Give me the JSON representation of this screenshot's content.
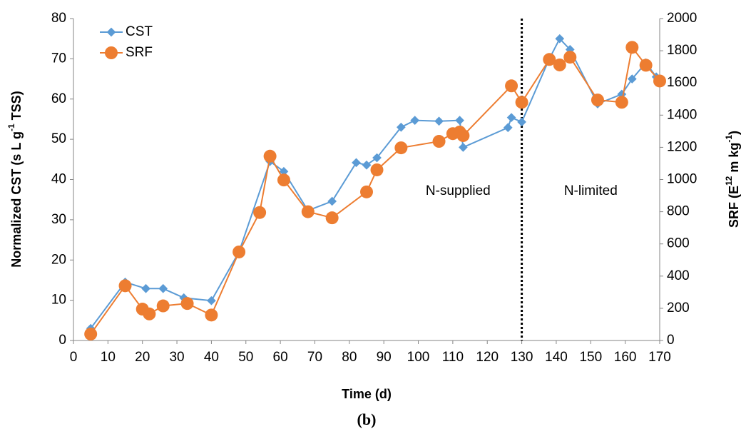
{
  "chart_data": {
    "type": "line",
    "title": "(b)",
    "xlabel": "Time (d)",
    "ylabel": [
      "Normalized CST (s L g",
      "-1",
      " TSS)"
    ],
    "y2label": [
      "SRF (E",
      "12",
      " m kg",
      "-1",
      ")"
    ],
    "xlim": [
      0,
      170
    ],
    "xticks": [
      0,
      10,
      20,
      30,
      40,
      50,
      60,
      70,
      80,
      90,
      100,
      110,
      120,
      130,
      140,
      150,
      160,
      170
    ],
    "ylim": [
      0,
      80
    ],
    "yticks": [
      0,
      10,
      20,
      30,
      40,
      50,
      60,
      70,
      80
    ],
    "y2lim": [
      0,
      2000
    ],
    "y2ticks": [
      0,
      200,
      400,
      600,
      800,
      1000,
      1200,
      1400,
      1600,
      1800,
      2000
    ],
    "grid": false,
    "legend": "upper left",
    "divider_x": 130,
    "annotations": [
      "N-supplied",
      "N-limited"
    ],
    "series": [
      {
        "name": "CST",
        "color": "#5b9bd5",
        "marker": "diamond",
        "x": [
          5,
          15,
          21,
          26,
          32,
          40,
          48,
          57,
          61,
          68,
          75,
          82,
          85,
          88,
          95,
          99,
          106,
          112,
          113,
          126,
          127,
          130,
          138,
          141,
          144,
          152,
          159,
          162,
          166,
          169
        ],
        "values": [
          3,
          14.5,
          12.9,
          12.9,
          10.6,
          9.9,
          22,
          44.5,
          42,
          32.3,
          34.6,
          44.2,
          43.6,
          45.4,
          53,
          54.7,
          54.5,
          54.7,
          48,
          52.9,
          55.4,
          54.3,
          70,
          75,
          72.3,
          58.8,
          61.2,
          65,
          69,
          65.5
        ]
      },
      {
        "name": "SRF",
        "color": "#ed7d31",
        "marker": "circle",
        "axis": "y2",
        "x": [
          5,
          15,
          20,
          22,
          26,
          33,
          40,
          48,
          54,
          57,
          61,
          68,
          75,
          85,
          88,
          95,
          106,
          110,
          112,
          113,
          127,
          130,
          138,
          141,
          144,
          152,
          159,
          162,
          166,
          170
        ],
        "values": [
          40,
          340,
          195,
          165,
          215,
          230,
          158,
          550,
          795,
          1145,
          997,
          800,
          762,
          923,
          1060,
          1197,
          1237,
          1285,
          1295,
          1273,
          1582,
          1480,
          1746,
          1712,
          1760,
          1494,
          1480,
          1821,
          1710,
          1612
        ]
      }
    ]
  }
}
